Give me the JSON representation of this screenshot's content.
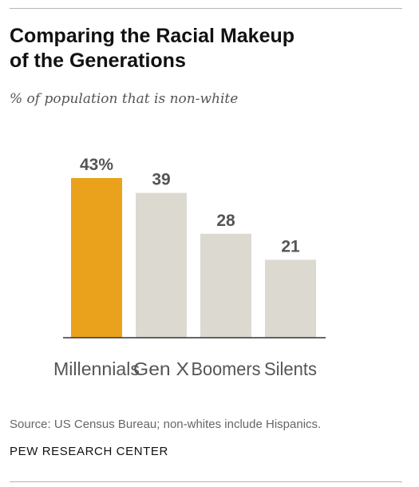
{
  "header": {
    "title_line1": "Comparing the Racial Makeup",
    "title_line2": "of the Generations",
    "subtitle": "% of population that is non-white"
  },
  "chart_data": {
    "type": "bar",
    "categories": [
      "Millennials",
      "Gen X",
      "Boomers",
      "Silents"
    ],
    "values": [
      43,
      39,
      28,
      21
    ],
    "value_labels": [
      "43%",
      "39",
      "28",
      "21"
    ],
    "highlight_index": 0,
    "colors": {
      "highlight": "#eaa21d",
      "default": "#dcdad0",
      "baseline": "#333333"
    },
    "ylim": [
      0,
      43
    ],
    "grid": false
  },
  "footer": {
    "source": "Source: US Census Bureau; non-whites include Hispanics.",
    "brand": "PEW RESEARCH CENTER"
  }
}
